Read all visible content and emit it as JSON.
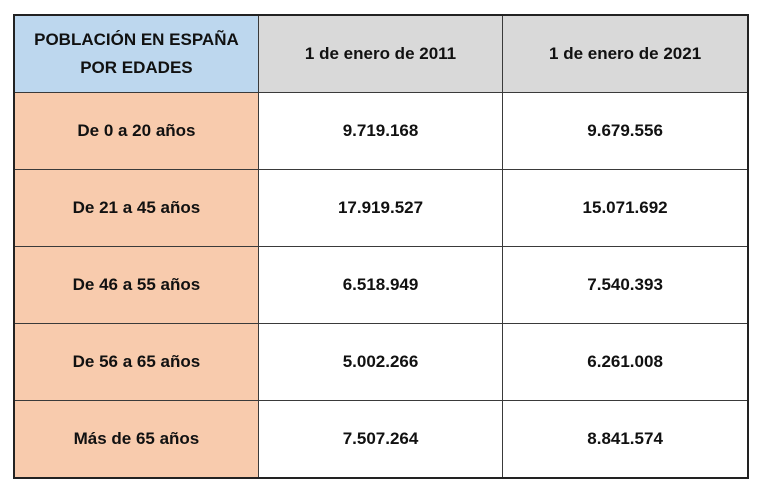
{
  "table": {
    "corner_header_line1": "POBLACIÓN EN ESPAÑA",
    "corner_header_line2": "POR EDADES",
    "columns": [
      "1 de enero de 2011",
      "1 de enero de 2021"
    ],
    "rows": [
      {
        "label": "De 0 a 20 años",
        "values": [
          "9.719.168",
          "9.679.556"
        ]
      },
      {
        "label": "De 21 a 45 años",
        "values": [
          "17.919.527",
          "15.071.692"
        ]
      },
      {
        "label": "De 46 a 55 años",
        "values": [
          "6.518.949",
          "7.540.393"
        ]
      },
      {
        "label": "De 56 a 65 años",
        "values": [
          "5.002.266",
          "6.261.008"
        ]
      },
      {
        "label": "Más de 65 años",
        "values": [
          "7.507.264",
          "8.841.574"
        ]
      }
    ],
    "colors": {
      "corner": "#BDD7EE",
      "header": "#D9D9D9",
      "row_label": "#F8CBAD"
    }
  }
}
